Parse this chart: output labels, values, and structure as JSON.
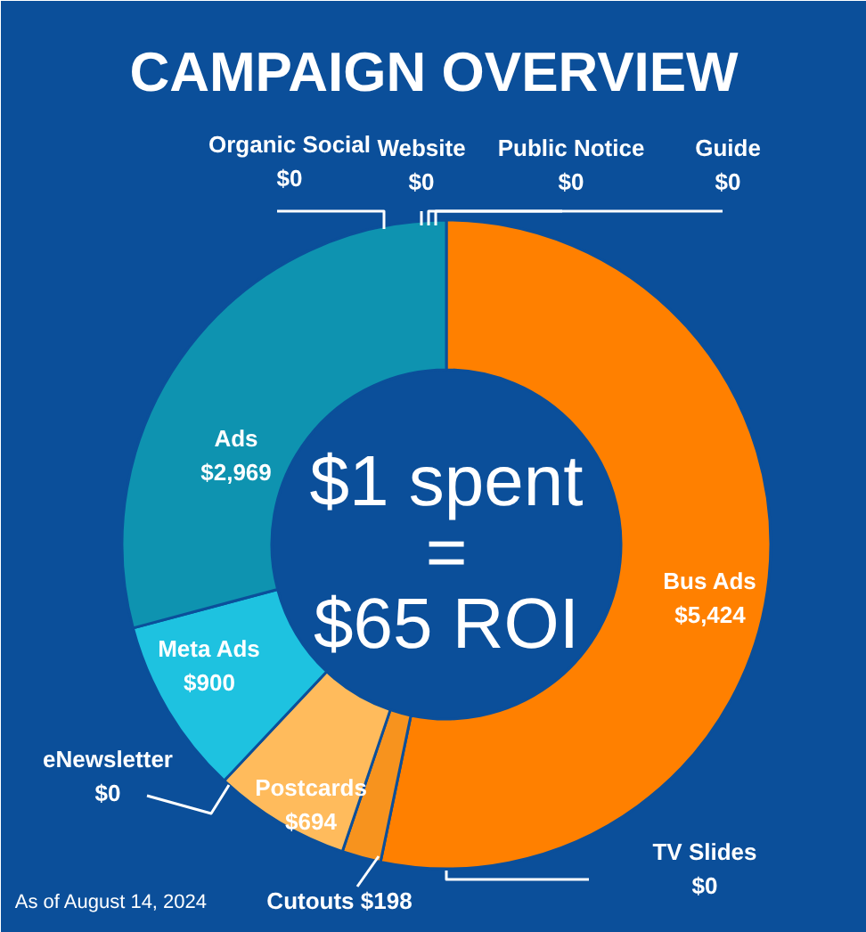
{
  "chart_data": {
    "type": "donut",
    "title": "CAMPAIGN OVERVIEW",
    "categories": [
      "Bus Ads",
      "TV Slides",
      "Cutouts",
      "Postcards",
      "eNewsletter",
      "Meta Ads",
      "Ads",
      "Organic Social",
      "Website",
      "Public Notice",
      "Guide"
    ],
    "values": [
      5424,
      0,
      198,
      694,
      0,
      900,
      2969,
      0,
      0,
      0,
      0
    ],
    "value_labels": [
      "$5,424",
      "$0",
      "$198",
      "$694",
      "$0",
      "$900",
      "$2,969",
      "$0",
      "$0",
      "$0",
      "$0"
    ],
    "colors": [
      "#ff8000",
      "#f58a1f",
      "#f7931e",
      "#ffbb5c",
      "#1ec2e0",
      "#1ec2e0",
      "#0e93b0",
      "#1a5fa0",
      "#1a5fa0",
      "#1a5fa0",
      "#1a5fa0"
    ],
    "annotations": [
      "$1 spent",
      "=",
      "$65 ROI",
      "As of August 14, 2024"
    ]
  }
}
